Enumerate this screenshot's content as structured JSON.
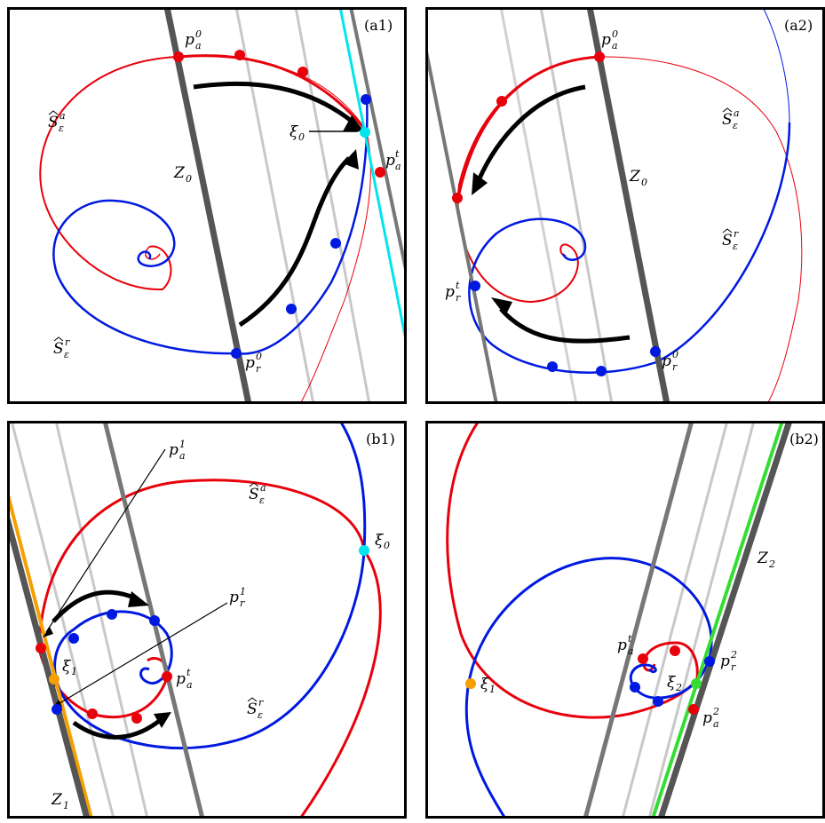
{
  "panels": {
    "a1": {
      "tag": "(a1)",
      "labels": {
        "pa0": "p",
        "pa0_sub": "a",
        "pa0_sup": "0",
        "Sa": "S",
        "Sa_sub": "ε",
        "Sa_sup": "a",
        "Z0": "Z",
        "Z0_sub": "0",
        "xi0": "ξ",
        "xi0_sub": "0",
        "pat": "p",
        "pat_sub": "a",
        "pat_sup": "t",
        "Sr": "S",
        "Sr_sub": "ε",
        "Sr_sup": "r",
        "pr0": "p",
        "pr0_sub": "r",
        "pr0_sup": "0"
      }
    },
    "a2": {
      "tag": "(a2)",
      "labels": {
        "pa0": "p",
        "pa0_sub": "a",
        "pa0_sup": "0",
        "Sa": "S",
        "Sa_sub": "ε",
        "Sa_sup": "a",
        "Z0": "Z",
        "Z0_sub": "0",
        "Sr": "S",
        "Sr_sub": "ε",
        "Sr_sup": "r",
        "prt": "p",
        "prt_sub": "r",
        "prt_sup": "t",
        "pr0": "p",
        "pr0_sub": "r",
        "pr0_sup": "0"
      }
    },
    "b1": {
      "tag": "(b1)",
      "labels": {
        "pa1": "p",
        "pa1_sub": "a",
        "pa1_sup": "1",
        "Sa": "S",
        "Sa_sub": "ε",
        "Sa_sup": "a",
        "xi0": "ξ",
        "xi0_sub": "0",
        "pr1": "p",
        "pr1_sub": "r",
        "pr1_sup": "1",
        "xi1": "ξ",
        "xi1_sub": "1",
        "pat": "p",
        "pat_sub": "a",
        "pat_sup": "t",
        "Sr": "S",
        "Sr_sub": "ε",
        "Sr_sup": "r",
        "Z1": "Z",
        "Z1_sub": "1"
      }
    },
    "b2": {
      "tag": "(b2)",
      "labels": {
        "Z2": "Z",
        "Z2_sub": "2",
        "pat": "p",
        "pat_sub": "a",
        "pat_sup": "t",
        "pr2": "p",
        "pr2_sub": "r",
        "pr2_sup": "2",
        "xi1": "ξ",
        "xi1_sub": "1",
        "xi2": "ξ",
        "xi2_sub": "2",
        "pa2": "p",
        "pa2_sub": "a",
        "pa2_sup": "2"
      }
    }
  },
  "colors": {
    "attracting": "#e8000b",
    "repelling": "#0019e0",
    "fold": "#555555",
    "light": "#c8c8c8",
    "tangent": "#00e5ee",
    "xi1": "#f5a000",
    "xi2": "#33dd33"
  }
}
